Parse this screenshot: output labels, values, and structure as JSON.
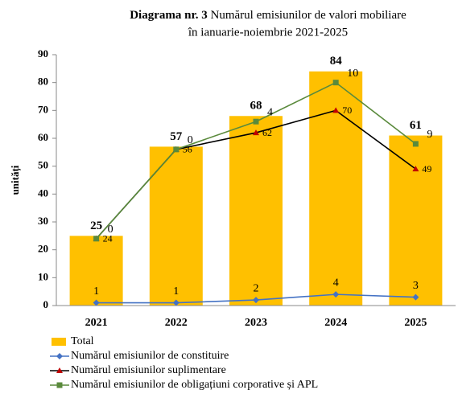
{
  "chart_data": {
    "type": "bar",
    "title": [
      "Diagrama nr. 3",
      "Numărul emisiunilor de valori mobiliare",
      "în ianuarie-noiembrie 2021-2025"
    ],
    "ylabel": "unități",
    "categories": [
      "2021",
      "2022",
      "2023",
      "2024",
      "2025"
    ],
    "ylim": [
      0,
      90
    ],
    "yticks": [
      0,
      10,
      20,
      30,
      40,
      50,
      60,
      70,
      80,
      90
    ],
    "grid": false,
    "legend": "bottom",
    "series": [
      {
        "name": "Total",
        "type": "bar",
        "color": "#ffc000",
        "label_color": "#e46c0a",
        "values": [
          25,
          57,
          68,
          84,
          61
        ]
      },
      {
        "name": "Numărul emisiunilor de constituire",
        "type": "line",
        "marker": "diamond",
        "color": "#4472c4",
        "marker_color": "#4472c4",
        "label_color": "#4472c4",
        "values": [
          1,
          1,
          2,
          4,
          3
        ]
      },
      {
        "name": "Numărul emisiunilor suplimentare",
        "type": "line",
        "marker": "triangle",
        "color": "#000000",
        "marker_color": "#c00000",
        "label_color": "#000000",
        "values": [
          24,
          56,
          62,
          70,
          49
        ]
      },
      {
        "name": "Numărul emisiunilor de obligațiuni corporative și APL",
        "type": "line",
        "marker": "square",
        "color": "#5a8a3c",
        "marker_color": "#5a8a3c",
        "label_color": "#5a8a3c",
        "stacked": true,
        "values": [
          0,
          0,
          4,
          10,
          9
        ]
      }
    ]
  }
}
